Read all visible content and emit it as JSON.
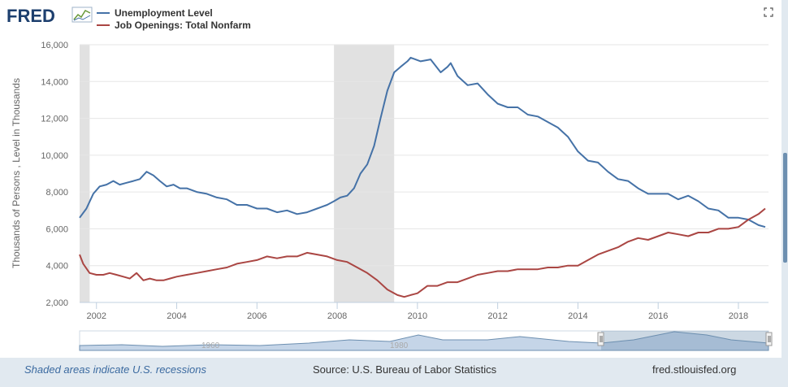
{
  "header": {
    "logo_text": "FRED",
    "expand_icon": "fullscreen-icon"
  },
  "legend": [
    {
      "label": "Unemployment Level",
      "color": "#4572a7"
    },
    {
      "label": "Job Openings: Total Nonfarm",
      "color": "#aa4643"
    }
  ],
  "footer": {
    "recession_note": "Shaded areas indicate U.S. recessions",
    "source": "Source: U.S. Bureau of Labor Statistics",
    "link": "fred.stlouisfed.org"
  },
  "navigator": {
    "labels": [
      "1960",
      "1980"
    ]
  },
  "chart_data": {
    "type": "line",
    "ylabel": "Thousands of Persons , Level in Thousands",
    "xlim": [
      2001.58,
      2018.75
    ],
    "ylim": [
      2000,
      16000
    ],
    "y_ticks": [
      2000,
      4000,
      6000,
      8000,
      10000,
      12000,
      14000,
      16000
    ],
    "y_tick_labels": [
      "2,000",
      "4,000",
      "6,000",
      "8,000",
      "10,000",
      "12,000",
      "14,000",
      "16,000"
    ],
    "x_ticks": [
      2002,
      2004,
      2006,
      2008,
      2010,
      2012,
      2014,
      2016,
      2018
    ],
    "x_tick_labels": [
      "2002",
      "2004",
      "2006",
      "2008",
      "2010",
      "2012",
      "2014",
      "2016",
      "2018"
    ],
    "recessions": [
      [
        2001.25,
        2001.83
      ],
      [
        2007.92,
        2009.42
      ]
    ],
    "grid": "horizontal",
    "series": [
      {
        "name": "Unemployment Level",
        "color": "#4572a7",
        "x": [
          2001.58,
          2001.75,
          2001.92,
          2002.08,
          2002.25,
          2002.42,
          2002.58,
          2002.75,
          2002.92,
          2003.08,
          2003.25,
          2003.42,
          2003.58,
          2003.75,
          2003.92,
          2004.08,
          2004.25,
          2004.5,
          2004.75,
          2005.0,
          2005.25,
          2005.5,
          2005.75,
          2006.0,
          2006.25,
          2006.5,
          2006.75,
          2007.0,
          2007.25,
          2007.5,
          2007.75,
          2007.92,
          2008.08,
          2008.25,
          2008.42,
          2008.58,
          2008.75,
          2008.92,
          2009.08,
          2009.25,
          2009.42,
          2009.58,
          2009.75,
          2009.83,
          2010.08,
          2010.33,
          2010.58,
          2010.75,
          2010.83,
          2011.0,
          2011.25,
          2011.5,
          2011.75,
          2012.0,
          2012.25,
          2012.5,
          2012.75,
          2013.0,
          2013.25,
          2013.5,
          2013.75,
          2014.0,
          2014.25,
          2014.5,
          2014.75,
          2015.0,
          2015.25,
          2015.5,
          2015.75,
          2016.0,
          2016.25,
          2016.5,
          2016.75,
          2017.0,
          2017.25,
          2017.5,
          2017.75,
          2018.0,
          2018.25,
          2018.5,
          2018.67
        ],
        "values": [
          6600,
          7100,
          7900,
          8300,
          8400,
          8600,
          8400,
          8500,
          8600,
          8700,
          9100,
          8900,
          8600,
          8300,
          8400,
          8200,
          8200,
          8000,
          7900,
          7700,
          7600,
          7300,
          7300,
          7100,
          7100,
          6900,
          7000,
          6800,
          6900,
          7100,
          7300,
          7500,
          7700,
          7800,
          8200,
          9000,
          9500,
          10500,
          12000,
          13500,
          14500,
          14800,
          15100,
          15300,
          15100,
          15200,
          14500,
          14800,
          15000,
          14300,
          13800,
          13900,
          13300,
          12800,
          12600,
          12600,
          12200,
          12100,
          11800,
          11500,
          11000,
          10200,
          9700,
          9600,
          9100,
          8700,
          8600,
          8200,
          7900,
          7900,
          7900,
          7600,
          7800,
          7500,
          7100,
          7000,
          6600,
          6600,
          6500,
          6200,
          6100
        ]
      },
      {
        "name": "Job Openings: Total Nonfarm",
        "color": "#aa4643",
        "x": [
          2001.58,
          2001.67,
          2001.83,
          2002.0,
          2002.17,
          2002.33,
          2002.5,
          2002.67,
          2002.83,
          2003.0,
          2003.17,
          2003.33,
          2003.5,
          2003.67,
          2003.83,
          2004.0,
          2004.25,
          2004.5,
          2004.75,
          2005.0,
          2005.25,
          2005.5,
          2005.75,
          2006.0,
          2006.25,
          2006.5,
          2006.75,
          2007.0,
          2007.25,
          2007.5,
          2007.75,
          2008.0,
          2008.25,
          2008.5,
          2008.75,
          2009.0,
          2009.25,
          2009.5,
          2009.67,
          2009.83,
          2010.0,
          2010.25,
          2010.5,
          2010.75,
          2011.0,
          2011.25,
          2011.5,
          2011.75,
          2012.0,
          2012.25,
          2012.5,
          2012.75,
          2013.0,
          2013.25,
          2013.5,
          2013.75,
          2014.0,
          2014.25,
          2014.5,
          2014.75,
          2015.0,
          2015.25,
          2015.5,
          2015.75,
          2016.0,
          2016.25,
          2016.5,
          2016.75,
          2017.0,
          2017.25,
          2017.5,
          2017.75,
          2018.0,
          2018.25,
          2018.5,
          2018.67
        ],
        "values": [
          4600,
          4100,
          3600,
          3500,
          3500,
          3600,
          3500,
          3400,
          3300,
          3600,
          3200,
          3300,
          3200,
          3200,
          3300,
          3400,
          3500,
          3600,
          3700,
          3800,
          3900,
          4100,
          4200,
          4300,
          4500,
          4400,
          4500,
          4500,
          4700,
          4600,
          4500,
          4300,
          4200,
          3900,
          3600,
          3200,
          2700,
          2400,
          2300,
          2400,
          2500,
          2900,
          2900,
          3100,
          3100,
          3300,
          3500,
          3600,
          3700,
          3700,
          3800,
          3800,
          3800,
          3900,
          3900,
          4000,
          4000,
          4300,
          4600,
          4800,
          5000,
          5300,
          5500,
          5400,
          5600,
          5800,
          5700,
          5600,
          5800,
          5800,
          6000,
          6000,
          6100,
          6500,
          6800,
          7100
        ]
      }
    ]
  }
}
